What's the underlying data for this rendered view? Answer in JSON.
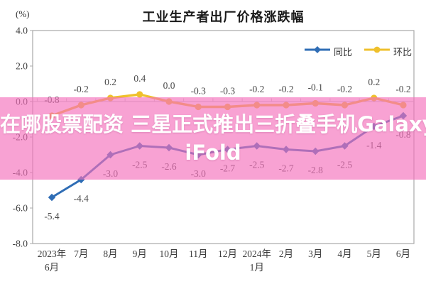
{
  "chart": {
    "title": "工业生产者出厂价格涨跌幅",
    "unit_label": "(%)"
  },
  "overlay": {
    "text": "在哪股票配资 三星正式推出三折叠手机Galaxy Z TriFold",
    "lines": [
      "在哪股票配资 三星正式推出三折叠手机Galaxy Z Tr",
      "iFold"
    ],
    "background": "#f470bc",
    "text_color": "#ffffff"
  },
  "chart_data": {
    "type": "line",
    "title": "工业生产者出厂价格涨跌幅",
    "ylabel": "(%)",
    "categories": [
      "2023年\n6月",
      "7月",
      "8月",
      "9月",
      "10月",
      "11月",
      "12月",
      "2024年\n1月",
      "2月",
      "3月",
      "4月",
      "5月",
      "6月"
    ],
    "series": [
      {
        "name": "同比",
        "color": "#2f6db5",
        "marker": "diamond",
        "label_position": "below",
        "values": [
          -5.4,
          -4.4,
          -3.0,
          -2.5,
          -2.6,
          -3.0,
          -2.7,
          -2.5,
          -2.7,
          -2.8,
          -2.5,
          -1.4,
          -0.8
        ]
      },
      {
        "name": "环比",
        "color": "#efc02c",
        "marker": "circle",
        "label_position": "above",
        "values": [
          -0.8,
          -0.2,
          0.2,
          0.4,
          0.0,
          -0.3,
          -0.3,
          -0.2,
          -0.2,
          -0.1,
          -0.2,
          0.2,
          -0.2
        ]
      }
    ],
    "ylim": [
      -8.0,
      4.0
    ],
    "yticks": [
      "4.0",
      "2.0",
      "0.0",
      "-2.0",
      "-4.0",
      "-6.0",
      "-8.0"
    ],
    "grid": false,
    "zero_axis": true,
    "legend_position": "top-right",
    "colors": {
      "plot_border": "#a8a8a8",
      "zero_line": "#bcbcbc",
      "tick": "#c9c9c9",
      "label_text": "#4a4a4a",
      "axis_text": "#3d3d3d"
    }
  }
}
